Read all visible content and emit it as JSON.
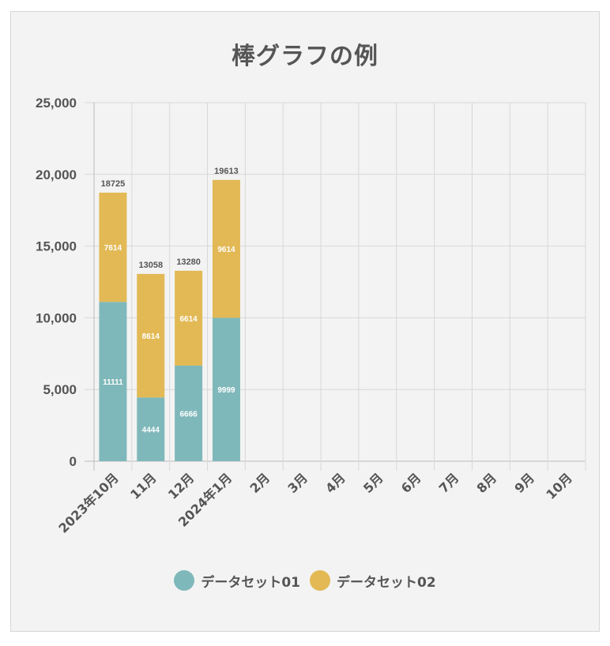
{
  "chart_data": {
    "type": "bar",
    "stacked": true,
    "title": "棒グラフの例",
    "categories": [
      "2023年10月",
      "11月",
      "12月",
      "2024年1月",
      "2月",
      "3月",
      "4月",
      "5月",
      "6月",
      "7月",
      "8月",
      "9月",
      "10月"
    ],
    "series": [
      {
        "name": "データセット01",
        "color": "#7fb8ba",
        "values": [
          11111,
          4444,
          6666,
          9999,
          null,
          null,
          null,
          null,
          null,
          null,
          null,
          null,
          null
        ]
      },
      {
        "name": "データセット02",
        "color": "#e2b955",
        "values": [
          7614,
          8614,
          6614,
          9614,
          null,
          null,
          null,
          null,
          null,
          null,
          null,
          null,
          null
        ]
      }
    ],
    "totals": [
      18725,
      13058,
      13280,
      19613
    ],
    "ylim": [
      0,
      25000
    ],
    "yticks": [
      0,
      5000,
      10000,
      15000,
      20000,
      25000
    ],
    "ytick_labels": [
      "0",
      "5,000",
      "10,000",
      "15,000",
      "20,000",
      "25,000"
    ],
    "grid": true,
    "legend_position": "bottom",
    "xlabel": "",
    "ylabel": ""
  }
}
